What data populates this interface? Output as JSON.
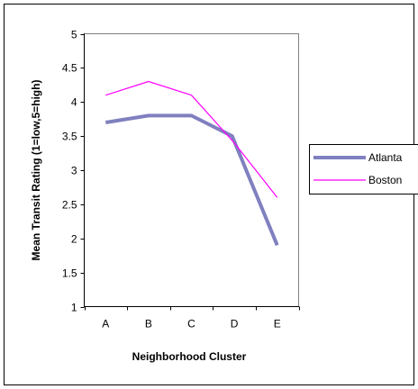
{
  "chart_data": {
    "type": "line",
    "categories": [
      "A",
      "B",
      "C",
      "D",
      "E"
    ],
    "xlabel": "Neighborhood Cluster",
    "ylabel": "Mean Transit Rating (1=low,5=high)",
    "ylim": [
      1,
      5
    ],
    "yticks": [
      "1",
      "1.5",
      "2",
      "2.5",
      "3",
      "3.5",
      "4",
      "4.5",
      "5"
    ],
    "grid": false,
    "legend_position": "right",
    "series": [
      {
        "name": "Atlanta",
        "color": "#8080C0",
        "values": [
          3.7,
          3.8,
          3.8,
          3.5,
          1.9
        ],
        "x": [
          0,
          1,
          2,
          2.95,
          4
        ]
      },
      {
        "name": "Boston",
        "color": "#FF00FF",
        "values": [
          4.1,
          4.3,
          4.1,
          3.4,
          2.6
        ],
        "x": [
          0,
          1,
          2,
          3,
          4
        ]
      }
    ]
  }
}
